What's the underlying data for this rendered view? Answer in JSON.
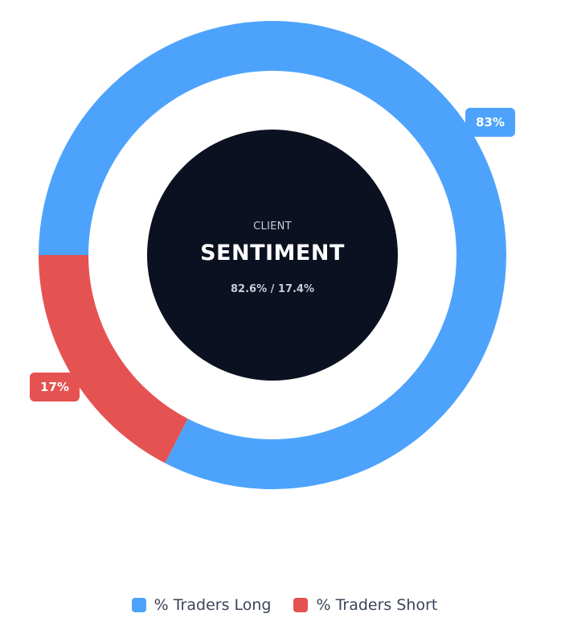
{
  "chart_data": {
    "type": "pie",
    "variant": "donut",
    "categories": [
      "% Traders Long",
      "% Traders Short"
    ],
    "values": [
      82.6,
      17.4
    ],
    "data_labels": [
      "83%",
      "17%"
    ],
    "colors": [
      "#4da3fc",
      "#e55252"
    ],
    "center": {
      "subtitle": "CLIENT",
      "title": "SENTIMENT",
      "ratio": "82.6% / 17.4%"
    },
    "legend_position": "bottom"
  }
}
